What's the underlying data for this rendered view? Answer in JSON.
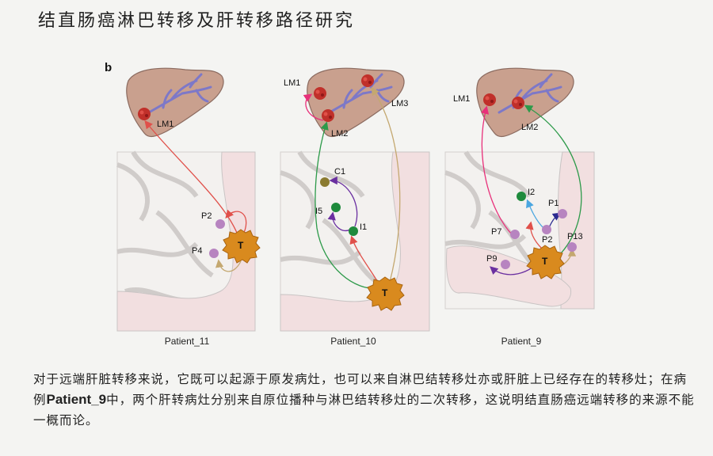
{
  "title": "结直肠癌淋巴转移及肝转移路径研究",
  "figure": {
    "panel_label": "b",
    "patients": [
      {
        "name": "Patient_11",
        "labels": {
          "lm1": "LM1",
          "p2": "P2",
          "p4": "P4",
          "t": "T"
        }
      },
      {
        "name": "Patient_10",
        "labels": {
          "lm1": "LM1",
          "lm2": "LM2",
          "lm3": "LM3",
          "c1": "C1",
          "i5": "I5",
          "i1": "I1",
          "t": "T"
        }
      },
      {
        "name": "Patient_9",
        "labels": {
          "lm1": "LM1",
          "lm2": "LM2",
          "i2": "I2",
          "p1": "P1",
          "p7": "P7",
          "p2": "P2",
          "p13": "P13",
          "p9": "P9",
          "t": "T"
        }
      }
    ]
  },
  "caption": {
    "part1": "对于远端肝脏转移来说，它既可以起源于原发病灶，也可以来自淋巴结转移灶亦或肝脏上已经存在的转移灶；在病例",
    "emphasis": "Patient_9",
    "part2": "中，两个肝转病灶分别来自原位播种与淋巴结转移灶的二次转移，这说明结直肠癌远端转移的来源不能一概而论。"
  },
  "colors": {
    "liver": "#c9a08e",
    "liver_outline": "#8b6b60",
    "vessels": "#7d78c8",
    "liver_lesion": "#c0302a",
    "colon": "#f2dfe0",
    "colon_outline": "#c9c4c4",
    "tumor": "#d98a1e",
    "node_purple": "#b784c0",
    "node_green": "#1e8a3c",
    "node_olive": "#8a7a30",
    "arrow_red": "#e0504a",
    "arrow_pink": "#e8307a",
    "arrow_green": "#2d9a4a",
    "arrow_tan": "#c4a870",
    "arrow_purple": "#6a2fa0",
    "arrow_blue": "#4aa6e0",
    "arrow_navy": "#2a2a90"
  }
}
